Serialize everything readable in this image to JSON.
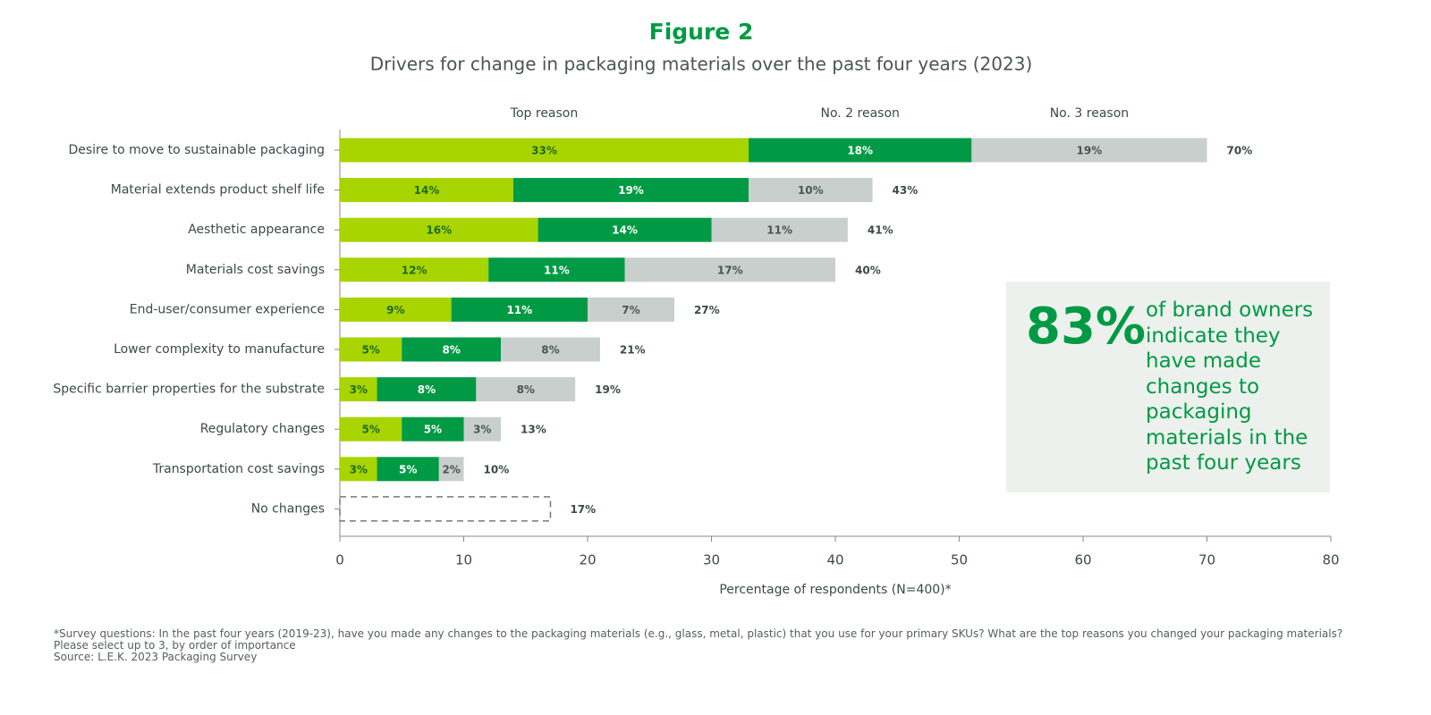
{
  "chart_data": {
    "type": "stacked-barh",
    "title": "Figure 2",
    "subtitle": "Drivers for change in packaging materials over the past four years (2023)",
    "categories": [
      "Desire to move to sustainable packaging",
      "Material extends product shelf life",
      "Aesthetic appearance",
      "Materials cost savings",
      "End-user/consumer experience",
      "Lower complexity to manufacture",
      "Specific barrier properties for the substrate",
      "Regulatory changes",
      "Transportation cost savings",
      "No changes"
    ],
    "series": [
      {
        "name": "Top reason",
        "color": "#a8d400",
        "label_color": "#1d6b1d",
        "values": [
          33,
          14,
          16,
          12,
          9,
          5,
          3,
          5,
          3,
          null
        ],
        "value_labels": [
          "33%",
          "14%",
          "16%",
          "12%",
          "9%",
          "5%",
          "3%",
          "5%",
          "3%",
          null
        ]
      },
      {
        "name": "No. 2 reason",
        "color": "#009a44",
        "label_color": "#ffffff",
        "values": [
          18,
          19,
          14,
          11,
          11,
          8,
          8,
          5,
          5,
          null
        ],
        "value_labels": [
          "18%",
          "19%",
          "14%",
          "11%",
          "11%",
          "8%",
          "8%",
          "5%",
          "5%",
          null
        ]
      },
      {
        "name": "No. 3 reason",
        "color": "#c8cfcc",
        "label_color": "#4a5555",
        "values": [
          19,
          10,
          11,
          17,
          7,
          8,
          8,
          3,
          2,
          null
        ],
        "value_labels": [
          "19%",
          "10%",
          "11%",
          "17%",
          "7%",
          "8%",
          "8%",
          "3%",
          "2%",
          null
        ]
      }
    ],
    "totals": {
      "values": [
        70,
        43,
        41,
        40,
        27,
        21,
        19,
        13,
        10,
        17
      ],
      "value_labels": [
        "70%",
        "43%",
        "41%",
        "40%",
        "27%",
        "21%",
        "19%",
        "13%",
        "10%",
        "17%"
      ]
    },
    "xlabel": "Percentage of respondents (N=400)*",
    "xlim": [
      0,
      80
    ],
    "xticks": [
      0,
      10,
      20,
      30,
      40,
      50,
      60,
      70,
      80
    ],
    "callout": {
      "headline": "83%",
      "text": "of brand owners indicate they have made changes to packaging materials in the past four years"
    },
    "footnote": "*Survey questions: In the past four years (2019-23), have you made any changes to the packaging materials (e.g., glass, metal, plastic) that you use for your primary SKUs? What are the top reasons you changed your packaging materials? Please select up to 3, by order of importance",
    "source": "Source: L.E.K. 2023 Packaging Survey"
  }
}
